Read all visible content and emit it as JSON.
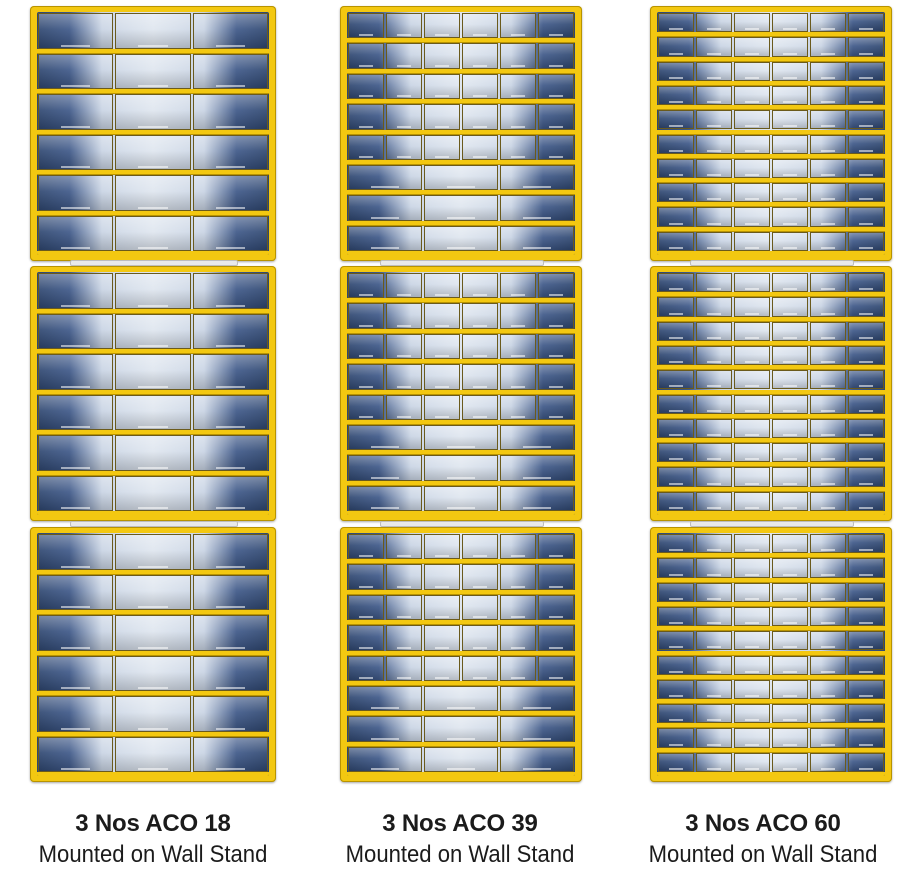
{
  "products": [
    {
      "title": "3 Nos ACO 18",
      "subtitle": "Mounted on Wall Stand",
      "units": 3,
      "drawer_rows": [
        3,
        3,
        3,
        3,
        3,
        3
      ]
    },
    {
      "title": "3 Nos ACO 39",
      "subtitle": "Mounted on Wall Stand",
      "units": 3,
      "drawer_rows": [
        6,
        6,
        6,
        6,
        6,
        3,
        3,
        3
      ]
    },
    {
      "title": "3 Nos ACO 60",
      "subtitle": "Mounted on Wall Stand",
      "units": 3,
      "drawer_rows": [
        6,
        6,
        6,
        6,
        6,
        6,
        6,
        6,
        6,
        6
      ]
    }
  ],
  "colors": {
    "frame": "#f3c811",
    "frame_edge": "#b89300",
    "bin_dark": "#2f4770",
    "bin_light": "#dfe6ef",
    "text": "#1b1b1b"
  }
}
